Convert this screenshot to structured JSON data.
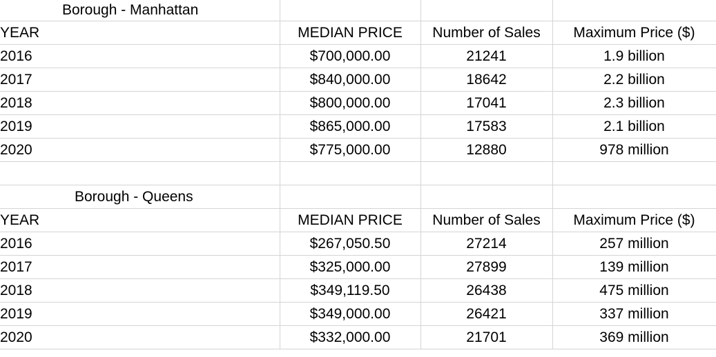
{
  "sections": [
    {
      "title": "Borough - Manhattan",
      "headers": [
        "YEAR",
        "MEDIAN PRICE",
        "Number of Sales",
        "Maximum Price ($)"
      ],
      "rows": [
        [
          "2016",
          "$700,000.00",
          "21241",
          "1.9 billion"
        ],
        [
          "2017",
          "$840,000.00",
          "18642",
          "2.2 billion"
        ],
        [
          "2018",
          "$800,000.00",
          "17041",
          "2.3 billion"
        ],
        [
          "2019",
          "$865,000.00",
          "17583",
          "2.1 billion"
        ],
        [
          "2020",
          "$775,000.00",
          "12880",
          "978 million"
        ]
      ]
    },
    {
      "title": "Borough - Queens",
      "headers": [
        "YEAR",
        "MEDIAN PRICE",
        "Number of Sales",
        "Maximum Price ($)"
      ],
      "rows": [
        [
          "2016",
          "$267,050.50",
          "27214",
          "257 million"
        ],
        [
          "2017",
          "$325,000.00",
          "27899",
          "139 million"
        ],
        [
          "2018",
          "$349,119.50",
          "26438",
          "475 million"
        ],
        [
          "2019",
          "$349,000.00",
          "26421",
          "337 million"
        ],
        [
          "2020",
          "$332,000.00",
          "21701",
          "369 million"
        ]
      ]
    }
  ]
}
